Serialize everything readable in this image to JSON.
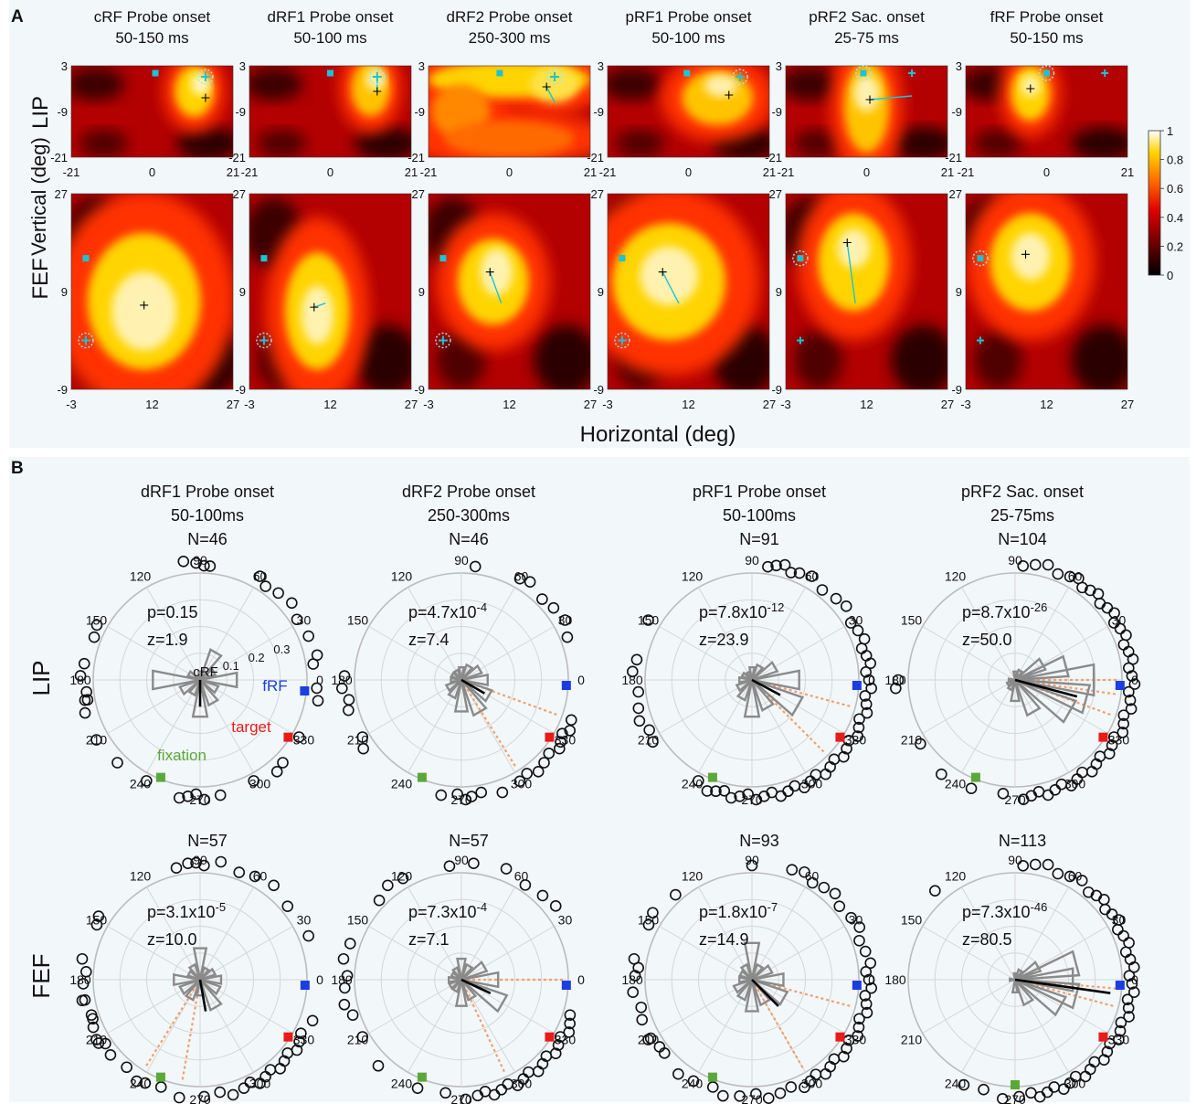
{
  "panel_a": {
    "label": "A",
    "row_labels": [
      "LIP",
      "FEF"
    ],
    "ylabel": "Vertical (deg)",
    "xlabel": "Horizontal (deg)",
    "columns": [
      {
        "title": "cRF Probe onset",
        "window": "50-150 ms"
      },
      {
        "title": "dRF1 Probe onset",
        "window": "50-100 ms"
      },
      {
        "title": "dRF2 Probe onset",
        "window": "250-300 ms"
      },
      {
        "title": "pRF1 Probe onset",
        "window": "50-100 ms"
      },
      {
        "title": "pRF2 Sac. onset",
        "window": "25-75 ms"
      },
      {
        "title": "fRF Probe onset",
        "window": "50-150 ms"
      }
    ],
    "lip_axes": {
      "x_ticks": [
        "-21",
        "0",
        "21"
      ],
      "y_ticks": [
        "3",
        "-9",
        "-21"
      ]
    },
    "fef_axes": {
      "x_ticks": [
        "-3",
        "12",
        "27"
      ],
      "y_ticks": [
        "27",
        "9",
        "-9"
      ]
    },
    "colorbar": {
      "ticks": [
        "1",
        "0.8",
        "0.6",
        "0.4",
        "0.2",
        "0"
      ],
      "range": [
        0,
        1
      ]
    },
    "colors": {
      "probe_marker": "#19c4d6",
      "peak_marker": "#000000"
    }
  },
  "panel_b": {
    "label": "B",
    "row_labels": [
      "LIP",
      "FEF"
    ],
    "angle_labels": [
      "90",
      "60",
      "30",
      "0",
      "330",
      "300",
      "270",
      "240",
      "210",
      "180",
      "150",
      "120"
    ],
    "radius_labels": [
      "0.1",
      "0.2",
      "0.3"
    ],
    "marker_labels": {
      "crf": "cRF",
      "frf": "fRF",
      "target": "target",
      "fixation": "fixation"
    },
    "colors": {
      "frf": "#1a3ee0",
      "target": "#e81b1b",
      "fixation": "#5aa83a",
      "dashed": "#f0a070",
      "rose": "#8a8a8a",
      "mean": "#000000"
    },
    "columns": [
      {
        "title": "dRF1 Probe onset",
        "window": "50-100ms"
      },
      {
        "title": "dRF2 Probe onset",
        "window": "250-300ms"
      },
      {
        "title": "pRF1 Probe onset",
        "window": "50-100ms"
      },
      {
        "title": "pRF2 Sac. onset",
        "window": "25-75ms"
      }
    ],
    "plots": [
      {
        "row": "LIP",
        "n": "N=46",
        "p_base": "p=0.15",
        "p_exp": "",
        "z": "z=1.9"
      },
      {
        "row": "LIP",
        "n": "N=46",
        "p_base": "p=4.7x10",
        "p_exp": "-4",
        "z": "z=7.4"
      },
      {
        "row": "LIP",
        "n": "N=91",
        "p_base": "p=7.8x10",
        "p_exp": "-12",
        "z": "z=23.9"
      },
      {
        "row": "LIP",
        "n": "N=104",
        "p_base": "p=8.7x10",
        "p_exp": "-26",
        "z": "z=50.0"
      },
      {
        "row": "FEF",
        "n": "N=57",
        "p_base": "p=3.1x10",
        "p_exp": "-5",
        "z": "z=10.0"
      },
      {
        "row": "FEF",
        "n": "N=57",
        "p_base": "p=7.3x10",
        "p_exp": "-4",
        "z": "z=7.1"
      },
      {
        "row": "FEF",
        "n": "N=93",
        "p_base": "p=1.8x10",
        "p_exp": "-7",
        "z": "z=14.9"
      },
      {
        "row": "FEF",
        "n": "N=113",
        "p_base": "p=7.3x10",
        "p_exp": "-46",
        "z": "z=80.5"
      }
    ]
  }
}
